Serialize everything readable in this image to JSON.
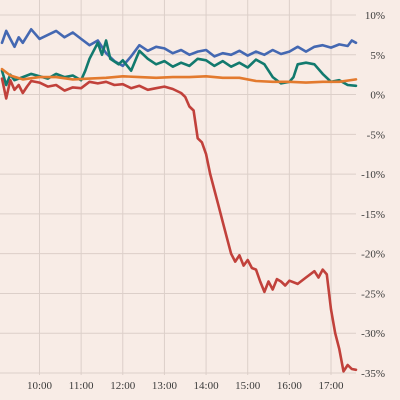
{
  "chart_data": {
    "type": "line",
    "title": "",
    "xlabel": "",
    "ylabel": "",
    "x_ticks": [
      "10:00",
      "11:00",
      "12:00",
      "13:00",
      "14:00",
      "15:00",
      "16:00",
      "17:00"
    ],
    "x_tick_hours": [
      10,
      11,
      12,
      13,
      14,
      15,
      16,
      17
    ],
    "y_ticks": [
      "10%",
      "5%",
      "0%",
      "-5%",
      "-10%",
      "-15%",
      "-20%",
      "-25%",
      "-30%",
      "-35%"
    ],
    "y_tick_values": [
      10,
      5,
      0,
      -5,
      -10,
      -15,
      -20,
      -25,
      -30,
      -35
    ],
    "xlim": [
      9.1,
      17.6
    ],
    "ylim": [
      -35,
      10
    ],
    "grid": true,
    "y_axis_position": "right",
    "series": [
      {
        "color": "#4468b2",
        "points": [
          [
            9.1,
            6.5
          ],
          [
            9.2,
            8.0
          ],
          [
            9.3,
            7.0
          ],
          [
            9.4,
            6.0
          ],
          [
            9.5,
            7.2
          ],
          [
            9.6,
            6.5
          ],
          [
            9.8,
            8.2
          ],
          [
            10.0,
            7.0
          ],
          [
            10.2,
            7.5
          ],
          [
            10.4,
            8.0
          ],
          [
            10.6,
            7.2
          ],
          [
            10.8,
            7.8
          ],
          [
            11.0,
            7.0
          ],
          [
            11.2,
            6.2
          ],
          [
            11.4,
            6.8
          ],
          [
            11.6,
            5.2
          ],
          [
            11.8,
            4.2
          ],
          [
            12.0,
            3.6
          ],
          [
            12.2,
            4.8
          ],
          [
            12.4,
            6.2
          ],
          [
            12.6,
            5.5
          ],
          [
            12.8,
            6.0
          ],
          [
            13.0,
            5.8
          ],
          [
            13.2,
            5.2
          ],
          [
            13.4,
            5.6
          ],
          [
            13.6,
            5.0
          ],
          [
            13.8,
            5.4
          ],
          [
            14.0,
            5.6
          ],
          [
            14.2,
            4.8
          ],
          [
            14.4,
            5.2
          ],
          [
            14.6,
            5.0
          ],
          [
            14.8,
            5.5
          ],
          [
            15.0,
            4.9
          ],
          [
            15.2,
            5.4
          ],
          [
            15.4,
            5.0
          ],
          [
            15.6,
            5.6
          ],
          [
            15.8,
            5.1
          ],
          [
            16.0,
            5.4
          ],
          [
            16.2,
            6.0
          ],
          [
            16.4,
            5.4
          ],
          [
            16.6,
            6.0
          ],
          [
            16.8,
            6.2
          ],
          [
            17.0,
            5.9
          ],
          [
            17.2,
            6.3
          ],
          [
            17.4,
            6.1
          ],
          [
            17.5,
            6.8
          ],
          [
            17.6,
            6.5
          ]
        ]
      },
      {
        "color": "#127a6e",
        "points": [
          [
            9.1,
            3.0
          ],
          [
            9.2,
            1.2
          ],
          [
            9.3,
            2.5
          ],
          [
            9.4,
            1.8
          ],
          [
            9.6,
            2.2
          ],
          [
            9.8,
            2.6
          ],
          [
            10.0,
            2.3
          ],
          [
            10.2,
            2.0
          ],
          [
            10.4,
            2.6
          ],
          [
            10.6,
            2.2
          ],
          [
            10.8,
            2.4
          ],
          [
            11.0,
            1.8
          ],
          [
            11.1,
            3.0
          ],
          [
            11.2,
            4.5
          ],
          [
            11.4,
            6.5
          ],
          [
            11.5,
            5.0
          ],
          [
            11.6,
            6.8
          ],
          [
            11.7,
            4.5
          ],
          [
            11.9,
            3.8
          ],
          [
            12.0,
            4.3
          ],
          [
            12.2,
            3.0
          ],
          [
            12.4,
            5.5
          ],
          [
            12.6,
            4.5
          ],
          [
            12.8,
            3.8
          ],
          [
            13.0,
            4.2
          ],
          [
            13.2,
            3.5
          ],
          [
            13.4,
            4.0
          ],
          [
            13.6,
            3.6
          ],
          [
            13.8,
            4.5
          ],
          [
            14.0,
            4.3
          ],
          [
            14.2,
            3.6
          ],
          [
            14.4,
            4.2
          ],
          [
            14.6,
            3.5
          ],
          [
            14.8,
            4.0
          ],
          [
            15.0,
            3.4
          ],
          [
            15.2,
            4.4
          ],
          [
            15.4,
            3.8
          ],
          [
            15.6,
            2.2
          ],
          [
            15.8,
            1.4
          ],
          [
            16.0,
            1.6
          ],
          [
            16.1,
            2.2
          ],
          [
            16.2,
            3.8
          ],
          [
            16.4,
            4.0
          ],
          [
            16.6,
            3.8
          ],
          [
            16.8,
            2.6
          ],
          [
            17.0,
            1.6
          ],
          [
            17.2,
            1.8
          ],
          [
            17.4,
            1.2
          ],
          [
            17.6,
            1.1
          ]
        ]
      },
      {
        "color": "#e37a2e",
        "points": [
          [
            9.1,
            3.2
          ],
          [
            9.3,
            2.4
          ],
          [
            9.6,
            1.9
          ],
          [
            10.0,
            2.2
          ],
          [
            10.4,
            2.2
          ],
          [
            10.8,
            1.9
          ],
          [
            11.2,
            2.0
          ],
          [
            11.6,
            2.1
          ],
          [
            12.0,
            2.3
          ],
          [
            12.4,
            2.2
          ],
          [
            12.8,
            2.1
          ],
          [
            13.2,
            2.2
          ],
          [
            13.6,
            2.2
          ],
          [
            14.0,
            2.3
          ],
          [
            14.4,
            2.1
          ],
          [
            14.8,
            2.1
          ],
          [
            15.2,
            1.7
          ],
          [
            15.6,
            1.6
          ],
          [
            16.0,
            1.6
          ],
          [
            16.4,
            1.5
          ],
          [
            16.8,
            1.6
          ],
          [
            17.2,
            1.6
          ],
          [
            17.6,
            1.9
          ]
        ]
      },
      {
        "color": "#c1413b",
        "points": [
          [
            9.1,
            2.0
          ],
          [
            9.2,
            -0.5
          ],
          [
            9.3,
            1.8
          ],
          [
            9.4,
            0.6
          ],
          [
            9.5,
            1.2
          ],
          [
            9.6,
            0.2
          ],
          [
            9.7,
            1.0
          ],
          [
            9.8,
            1.7
          ],
          [
            10.0,
            1.5
          ],
          [
            10.2,
            1.0
          ],
          [
            10.4,
            1.2
          ],
          [
            10.6,
            0.5
          ],
          [
            10.8,
            0.9
          ],
          [
            11.0,
            0.8
          ],
          [
            11.2,
            1.6
          ],
          [
            11.4,
            1.4
          ],
          [
            11.6,
            1.6
          ],
          [
            11.8,
            1.2
          ],
          [
            12.0,
            1.3
          ],
          [
            12.2,
            0.8
          ],
          [
            12.4,
            1.1
          ],
          [
            12.6,
            0.6
          ],
          [
            12.8,
            0.8
          ],
          [
            13.0,
            1.0
          ],
          [
            13.2,
            0.7
          ],
          [
            13.4,
            0.2
          ],
          [
            13.5,
            -0.3
          ],
          [
            13.6,
            -1.5
          ],
          [
            13.7,
            -2.0
          ],
          [
            13.8,
            -5.5
          ],
          [
            13.9,
            -6.0
          ],
          [
            14.0,
            -7.5
          ],
          [
            14.1,
            -10.0
          ],
          [
            14.2,
            -12.0
          ],
          [
            14.3,
            -14.0
          ],
          [
            14.4,
            -16.0
          ],
          [
            14.5,
            -18.0
          ],
          [
            14.6,
            -20.0
          ],
          [
            14.7,
            -21.0
          ],
          [
            14.8,
            -20.2
          ],
          [
            14.9,
            -21.5
          ],
          [
            15.0,
            -20.8
          ],
          [
            15.1,
            -21.8
          ],
          [
            15.2,
            -22.0
          ],
          [
            15.3,
            -23.5
          ],
          [
            15.4,
            -24.8
          ],
          [
            15.5,
            -23.5
          ],
          [
            15.6,
            -24.5
          ],
          [
            15.7,
            -23.2
          ],
          [
            15.8,
            -23.5
          ],
          [
            15.9,
            -24.0
          ],
          [
            16.0,
            -23.4
          ],
          [
            16.2,
            -23.8
          ],
          [
            16.4,
            -23.0
          ],
          [
            16.6,
            -22.2
          ],
          [
            16.7,
            -23.0
          ],
          [
            16.8,
            -22.0
          ],
          [
            16.9,
            -22.6
          ],
          [
            17.0,
            -27.0
          ],
          [
            17.1,
            -30.0
          ],
          [
            17.2,
            -32.0
          ],
          [
            17.3,
            -34.8
          ],
          [
            17.4,
            -34.0
          ],
          [
            17.5,
            -34.5
          ],
          [
            17.6,
            -34.6
          ]
        ]
      }
    ]
  }
}
